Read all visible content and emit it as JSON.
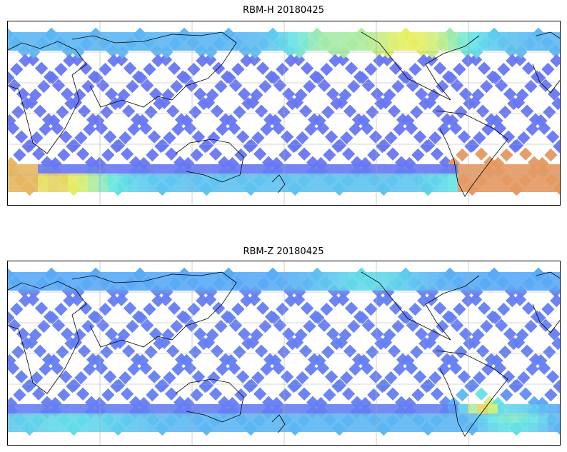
{
  "panels": [
    {
      "title": "RBM-H 20180425",
      "variant": "H"
    },
    {
      "title": "RBM-Z 20180425",
      "variant": "Z"
    }
  ],
  "colormap": {
    "name": "jet-like",
    "low": "#6a6af2",
    "mid_low": "#5aaaf6",
    "mid": "#66e6e6",
    "mid_high": "#e8ef64",
    "high": "#e06060"
  },
  "gridlines": "on",
  "coastlines": "on"
}
